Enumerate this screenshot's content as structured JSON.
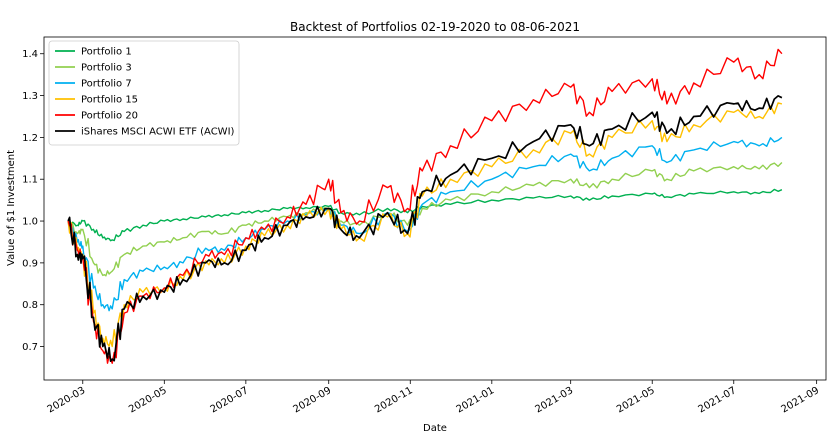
{
  "chart_data": {
    "type": "line",
    "title": "Backtest of Portfolios 02-19-2020 to 08-06-2021",
    "xlabel": "Date",
    "ylabel": "Value of $1 Investment",
    "xlim": [
      "2020-02-01",
      "2021-09-08"
    ],
    "ylim": [
      0.62,
      1.44
    ],
    "y_ticks": [
      0.7,
      0.8,
      0.9,
      1.0,
      1.1,
      1.2,
      1.3,
      1.4
    ],
    "y_tick_labels": [
      "0.7",
      "0.8",
      "0.9",
      "1.0",
      "1.1",
      "1.2",
      "1.3",
      "1.4"
    ],
    "x_ticks": [
      "2020-03-01",
      "2020-05-01",
      "2020-07-01",
      "2020-09-01",
      "2020-11-01",
      "2021-01-01",
      "2021-03-01",
      "2021-05-01",
      "2021-07-01",
      "2021-09-01"
    ],
    "x_tick_labels": [
      "2020-03",
      "2020-05",
      "2020-07",
      "2020-09",
      "2020-11",
      "2021-01",
      "2021-03",
      "2021-05",
      "2021-07",
      "2021-09"
    ],
    "grid": false,
    "legend_position": "top-left",
    "series": [
      {
        "name": "Portfolio 1",
        "color": "#00b050",
        "x": [
          "2020-02-19",
          "2020-02-26",
          "2020-03-01",
          "2020-03-09",
          "2020-03-16",
          "2020-03-23",
          "2020-04-01",
          "2020-04-15",
          "2020-05-01",
          "2020-05-15",
          "2020-06-01",
          "2020-06-15",
          "2020-07-01",
          "2020-07-15",
          "2020-08-01",
          "2020-08-15",
          "2020-09-01",
          "2020-09-10",
          "2020-09-24",
          "2020-10-15",
          "2020-10-30",
          "2020-11-10",
          "2020-12-01",
          "2021-01-01",
          "2021-02-01",
          "2021-03-01",
          "2021-03-15",
          "2021-04-01",
          "2021-05-01",
          "2021-05-12",
          "2021-06-01",
          "2021-07-01",
          "2021-07-20",
          "2021-08-06"
        ],
        "y": [
          1.0,
          0.99,
          1.0,
          0.98,
          0.96,
          0.955,
          0.975,
          0.99,
          1.0,
          1.005,
          1.01,
          1.015,
          1.02,
          1.025,
          1.03,
          1.032,
          1.035,
          1.02,
          1.015,
          1.03,
          1.02,
          1.035,
          1.04,
          1.05,
          1.055,
          1.06,
          1.05,
          1.06,
          1.065,
          1.058,
          1.065,
          1.07,
          1.066,
          1.075
        ]
      },
      {
        "name": "Portfolio 3",
        "color": "#92d050",
        "x": [
          "2020-02-19",
          "2020-02-26",
          "2020-03-01",
          "2020-03-09",
          "2020-03-16",
          "2020-03-23",
          "2020-04-01",
          "2020-04-15",
          "2020-05-01",
          "2020-05-15",
          "2020-06-01",
          "2020-06-15",
          "2020-07-01",
          "2020-07-15",
          "2020-08-01",
          "2020-08-15",
          "2020-09-01",
          "2020-09-10",
          "2020-09-24",
          "2020-10-15",
          "2020-10-30",
          "2020-11-10",
          "2020-12-01",
          "2021-01-01",
          "2021-02-01",
          "2021-03-01",
          "2021-03-15",
          "2021-04-01",
          "2021-05-01",
          "2021-05-12",
          "2021-06-01",
          "2021-07-01",
          "2021-07-20",
          "2021-08-06"
        ],
        "y": [
          1.0,
          0.97,
          0.98,
          0.9,
          0.87,
          0.88,
          0.92,
          0.94,
          0.95,
          0.96,
          0.975,
          0.97,
          0.99,
          1.0,
          1.01,
          1.02,
          1.03,
          1.0,
          0.99,
          1.02,
          0.99,
          1.03,
          1.05,
          1.07,
          1.085,
          1.1,
          1.08,
          1.1,
          1.12,
          1.1,
          1.12,
          1.13,
          1.125,
          1.14
        ]
      },
      {
        "name": "Portfolio 7",
        "color": "#00b0f0",
        "x": [
          "2020-02-19",
          "2020-02-26",
          "2020-03-01",
          "2020-03-09",
          "2020-03-16",
          "2020-03-23",
          "2020-04-01",
          "2020-04-15",
          "2020-05-01",
          "2020-05-15",
          "2020-06-01",
          "2020-06-15",
          "2020-07-01",
          "2020-07-15",
          "2020-08-01",
          "2020-08-15",
          "2020-09-01",
          "2020-09-10",
          "2020-09-24",
          "2020-10-15",
          "2020-10-30",
          "2020-11-10",
          "2020-12-01",
          "2021-01-01",
          "2021-02-01",
          "2021-03-01",
          "2021-03-15",
          "2021-04-01",
          "2021-05-01",
          "2021-05-12",
          "2021-06-01",
          "2021-07-01",
          "2021-07-20",
          "2021-08-06"
        ],
        "y": [
          1.0,
          0.95,
          0.94,
          0.84,
          0.8,
          0.79,
          0.86,
          0.88,
          0.89,
          0.9,
          0.935,
          0.93,
          0.96,
          0.98,
          1.0,
          1.015,
          1.03,
          0.99,
          0.97,
          1.02,
          0.975,
          1.04,
          1.07,
          1.1,
          1.13,
          1.16,
          1.12,
          1.15,
          1.18,
          1.14,
          1.17,
          1.19,
          1.18,
          1.2
        ]
      },
      {
        "name": "Portfolio 15",
        "color": "#ffc000",
        "x": [
          "2020-02-19",
          "2020-02-26",
          "2020-03-01",
          "2020-03-09",
          "2020-03-16",
          "2020-03-23",
          "2020-04-01",
          "2020-04-15",
          "2020-05-01",
          "2020-05-15",
          "2020-06-01",
          "2020-06-15",
          "2020-07-01",
          "2020-07-15",
          "2020-08-01",
          "2020-08-15",
          "2020-09-01",
          "2020-09-10",
          "2020-09-24",
          "2020-10-15",
          "2020-10-30",
          "2020-11-10",
          "2020-12-01",
          "2021-01-01",
          "2021-02-01",
          "2021-03-01",
          "2021-03-15",
          "2021-04-01",
          "2021-05-01",
          "2021-05-12",
          "2021-06-01",
          "2021-07-01",
          "2021-07-20",
          "2021-08-06"
        ],
        "y": [
          1.0,
          0.93,
          0.92,
          0.78,
          0.72,
          0.7,
          0.8,
          0.83,
          0.84,
          0.86,
          0.905,
          0.9,
          0.94,
          0.965,
          0.99,
          1.01,
          1.03,
          0.98,
          0.96,
          1.01,
          0.97,
          1.06,
          1.1,
          1.13,
          1.17,
          1.21,
          1.16,
          1.2,
          1.24,
          1.19,
          1.23,
          1.26,
          1.25,
          1.28
        ]
      },
      {
        "name": "Portfolio 20",
        "color": "#ff0000",
        "x": [
          "2020-02-19",
          "2020-02-26",
          "2020-03-01",
          "2020-03-09",
          "2020-03-16",
          "2020-03-23",
          "2020-04-01",
          "2020-04-15",
          "2020-05-01",
          "2020-05-15",
          "2020-06-01",
          "2020-06-15",
          "2020-07-01",
          "2020-07-15",
          "2020-08-01",
          "2020-08-15",
          "2020-09-01",
          "2020-09-10",
          "2020-09-24",
          "2020-10-15",
          "2020-10-30",
          "2020-11-10",
          "2020-12-01",
          "2021-01-01",
          "2021-02-01",
          "2021-03-01",
          "2021-03-15",
          "2021-04-01",
          "2021-05-01",
          "2021-05-12",
          "2021-06-01",
          "2021-07-01",
          "2021-07-20",
          "2021-08-06"
        ],
        "y": [
          1.0,
          0.93,
          0.91,
          0.76,
          0.69,
          0.66,
          0.78,
          0.82,
          0.84,
          0.87,
          0.92,
          0.92,
          0.96,
          0.98,
          1.01,
          1.04,
          1.1,
          1.02,
          1.0,
          1.08,
          1.03,
          1.12,
          1.18,
          1.24,
          1.29,
          1.32,
          1.26,
          1.31,
          1.34,
          1.28,
          1.33,
          1.38,
          1.35,
          1.4
        ]
      },
      {
        "name": "iShares MSCI ACWI ETF (ACWI)",
        "color": "#000000",
        "x": [
          "2020-02-19",
          "2020-02-26",
          "2020-03-01",
          "2020-03-09",
          "2020-03-16",
          "2020-03-23",
          "2020-04-01",
          "2020-04-15",
          "2020-05-01",
          "2020-05-15",
          "2020-06-01",
          "2020-06-15",
          "2020-07-01",
          "2020-07-15",
          "2020-08-01",
          "2020-08-15",
          "2020-09-01",
          "2020-09-10",
          "2020-09-24",
          "2020-10-15",
          "2020-10-30",
          "2020-11-10",
          "2020-12-01",
          "2021-01-01",
          "2021-02-01",
          "2021-03-01",
          "2021-03-15",
          "2021-04-01",
          "2021-05-01",
          "2021-05-12",
          "2021-06-01",
          "2021-07-01",
          "2021-07-20",
          "2021-08-06"
        ],
        "y": [
          1.0,
          0.92,
          0.91,
          0.77,
          0.7,
          0.67,
          0.79,
          0.82,
          0.83,
          0.86,
          0.9,
          0.9,
          0.93,
          0.96,
          0.99,
          1.01,
          1.03,
          0.98,
          0.96,
          1.02,
          0.97,
          1.07,
          1.11,
          1.15,
          1.19,
          1.23,
          1.18,
          1.22,
          1.26,
          1.21,
          1.25,
          1.28,
          1.27,
          1.295
        ]
      }
    ]
  }
}
